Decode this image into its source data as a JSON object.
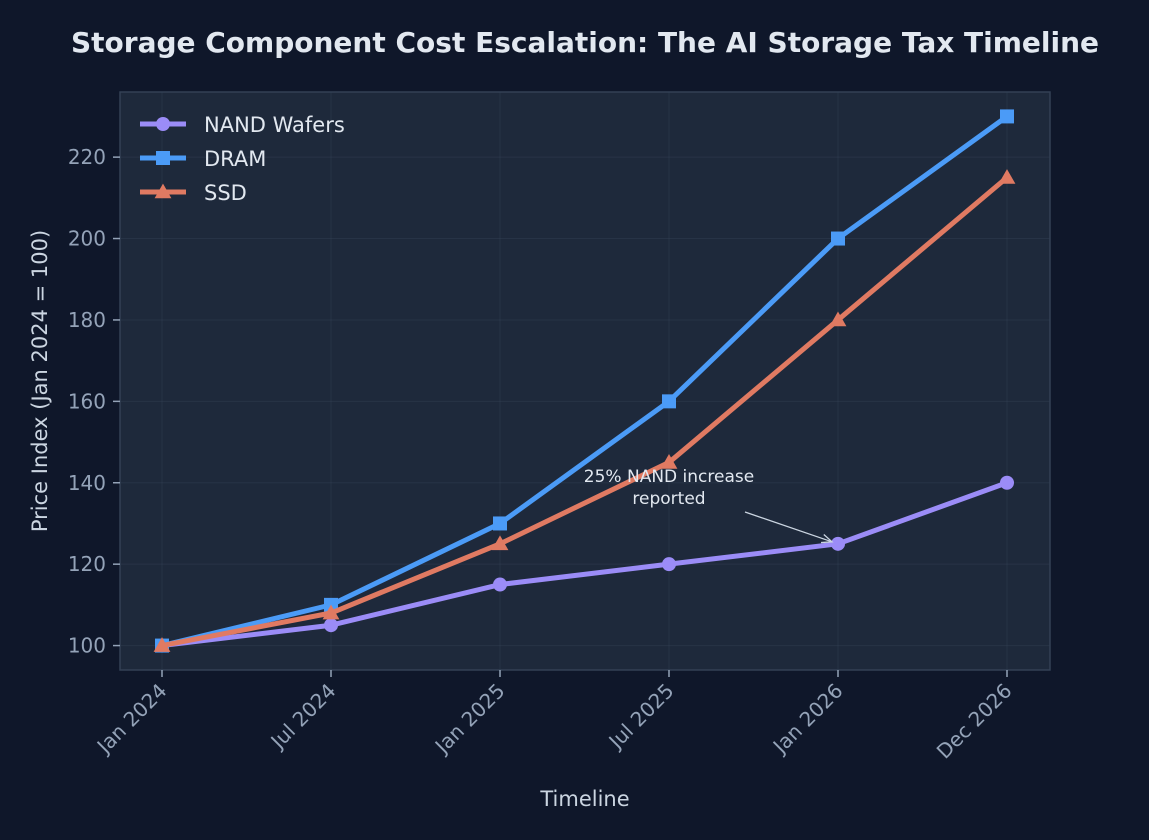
{
  "chart_data": {
    "type": "line",
    "title": "Storage Component Cost Escalation: The AI Storage Tax Timeline",
    "xlabel": "Timeline",
    "ylabel": "Price Index (Jan 2024 = 100)",
    "categories": [
      "Jan 2024",
      "Jul 2024",
      "Jan 2025",
      "Jul 2025",
      "Jan 2026",
      "Dec 2026"
    ],
    "ylim": [
      94,
      236
    ],
    "yticks": [
      100,
      120,
      140,
      160,
      180,
      200,
      220
    ],
    "grid": true,
    "legend_position": "top-left",
    "series": [
      {
        "name": "NAND Wafers",
        "color": "#9b8cf7",
        "marker": "circle",
        "values": [
          100,
          105,
          115,
          120,
          125,
          140
        ]
      },
      {
        "name": "DRAM",
        "color": "#4b9bf7",
        "marker": "square",
        "values": [
          100,
          110,
          130,
          160,
          200,
          230
        ]
      },
      {
        "name": "SSD",
        "color": "#e07a62",
        "marker": "triangle",
        "values": [
          100,
          108,
          125,
          145,
          180,
          215
        ]
      }
    ],
    "annotations": [
      {
        "lines": [
          "25% NAND increase",
          "reported"
        ],
        "x": "Jan 2026",
        "y": 125
      }
    ]
  }
}
